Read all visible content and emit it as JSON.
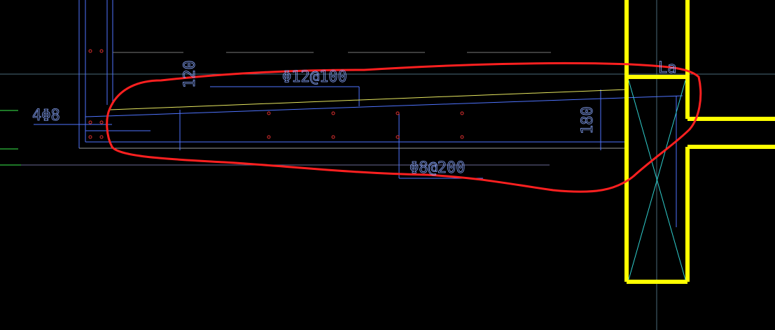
{
  "labels": [
    "4Φ8",
    "120",
    "Φ12@100",
    "La",
    "180",
    "Φ8@200"
  ]
}
